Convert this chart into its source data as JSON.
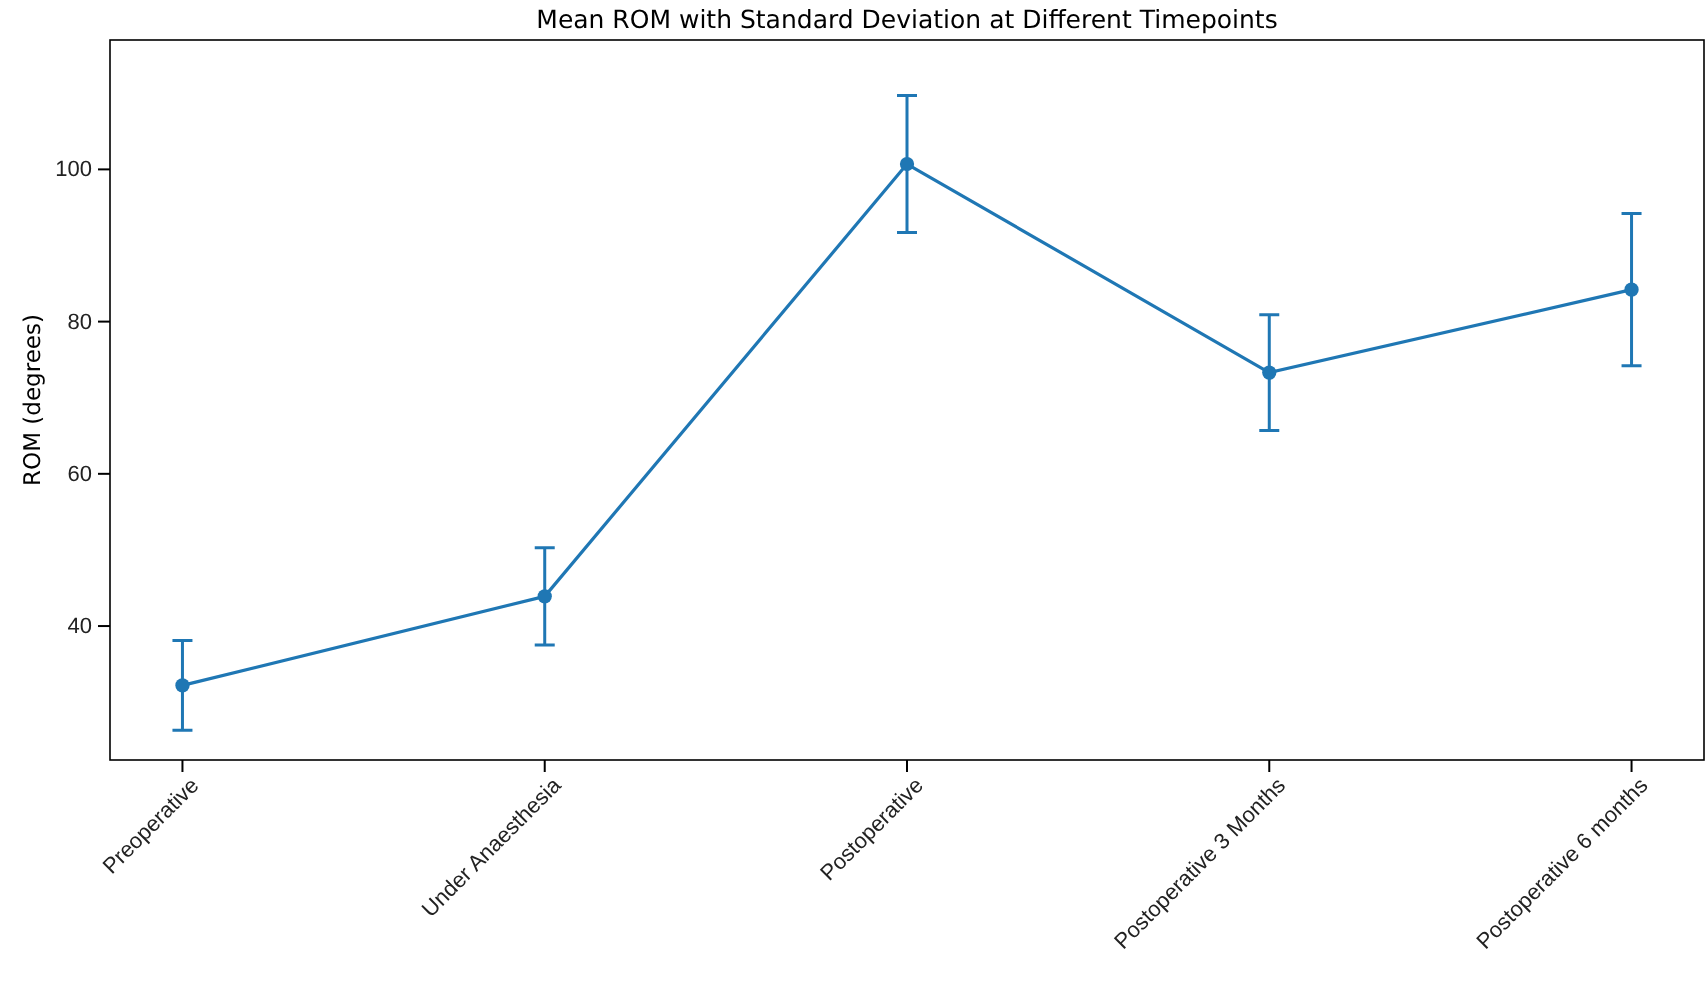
{
  "chart_data": {
    "type": "line",
    "title": "Mean ROM with Standard Deviation at Different Timepoints",
    "ylabel": "ROM (degrees)",
    "categories": [
      "Preoperative",
      "Under Anaesthesia",
      "Postoperative",
      "Postoperative 3 Months",
      "Postoperative 6 months"
    ],
    "series": [
      {
        "color": "#1f77b4",
        "values": [
          32.2,
          43.9,
          100.7,
          73.3,
          84.2
        ],
        "errors": [
          5.9,
          6.4,
          9,
          7.6,
          10
        ]
      }
    ],
    "ylim": [
      22.4,
      117
    ],
    "yticks": [
      40,
      60,
      80,
      100
    ],
    "marker": "circle",
    "line_style": "solid"
  }
}
